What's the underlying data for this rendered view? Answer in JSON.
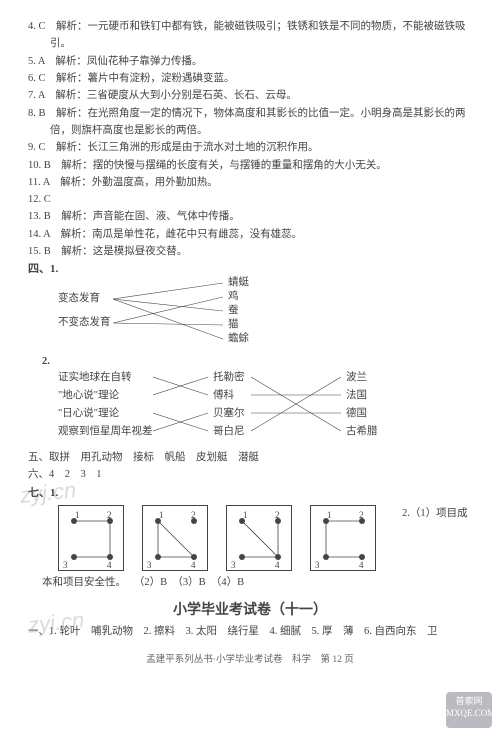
{
  "answers": [
    {
      "text": "4. C　解析：一元硬币和铁钉中都有铁，能被磁铁吸引；铁锈和铁是不同的物质，不能被磁铁吸引。",
      "cls": "indent"
    },
    {
      "text": "5. A　解析：凤仙花种子靠弹力传播。",
      "cls": "indent"
    },
    {
      "text": "6. C　解析：薯片中有淀粉，淀粉遇碘变蓝。",
      "cls": "indent"
    },
    {
      "text": "7. A　解析：三省硬度从大到小分别是石英、长石、云母。",
      "cls": "indent"
    },
    {
      "text": "8. B　解析：在光照角度一定的情况下，物体高度和其影长的比值一定。小明身高是其影长的两倍，则旗杆高度也是影长的两倍。",
      "cls": "indent"
    },
    {
      "text": "9. C　解析：长江三角洲的形成是由于流水对土地的沉积作用。",
      "cls": "indent"
    },
    {
      "text": "10. B　解析：摆的快慢与摆绳的长度有关，与摆锤的重量和摆角的大小无关。",
      "cls": "indent"
    },
    {
      "text": "11. A　解析：外勤温度高，用外勤加热。",
      "cls": "indent"
    },
    {
      "text": "12. C",
      "cls": "indent"
    },
    {
      "text": "13. B　解析：声音能在固、液、气体中传播。",
      "cls": "indent"
    },
    {
      "text": "14. A　解析：南瓜是单性花，雌花中只有雌蕊，没有雄蕊。",
      "cls": "indent"
    },
    {
      "text": "15. B　解析：这是模拟昼夜交替。",
      "cls": "indent"
    }
  ],
  "section4_head": "四、1.",
  "match1": {
    "left": [
      "变态发育",
      "不变态发育"
    ],
    "right": [
      "蜻蜓",
      "鸡",
      "蚕",
      "猫",
      "蟾蜍"
    ],
    "lines": [
      {
        "from": 0,
        "to": 0
      },
      {
        "from": 0,
        "to": 2
      },
      {
        "from": 0,
        "to": 4
      },
      {
        "from": 1,
        "to": 1
      },
      {
        "from": 1,
        "to": 3
      }
    ]
  },
  "match2_head": "2.",
  "match2": {
    "c1": [
      "证实地球在自转",
      "\"地心说\"理论",
      "\"日心说\"理论",
      "观察到恒星周年视差"
    ],
    "c2": [
      "托勒密",
      "傅科",
      "贝塞尔",
      "哥白尼"
    ],
    "c3": [
      "波兰",
      "法国",
      "德国",
      "古希腊"
    ],
    "l12": [
      [
        0,
        1
      ],
      [
        1,
        0
      ],
      [
        2,
        3
      ],
      [
        3,
        2
      ]
    ],
    "l23": [
      [
        0,
        3
      ],
      [
        1,
        1
      ],
      [
        2,
        2
      ],
      [
        3,
        0
      ]
    ]
  },
  "section5": "五、取拼　用孔动物　接标　帆船　皮划艇　潜艇",
  "section6": "六、4　2　3　1",
  "section7_head": "七、1.",
  "dice": [
    {
      "dots": [
        [
          15,
          15
        ],
        [
          51,
          15
        ],
        [
          15,
          51
        ],
        [
          51,
          51
        ]
      ],
      "nums": [
        [
          "1",
          16,
          4
        ],
        [
          "2",
          48,
          4
        ],
        [
          "3",
          4,
          54
        ],
        [
          "4",
          48,
          54
        ]
      ],
      "lines": [
        [
          15,
          15,
          51,
          15
        ],
        [
          51,
          15,
          51,
          51
        ],
        [
          51,
          51,
          15,
          51
        ]
      ]
    },
    {
      "dots": [
        [
          15,
          15
        ],
        [
          51,
          15
        ],
        [
          15,
          51
        ],
        [
          51,
          51
        ]
      ],
      "nums": [
        [
          "1",
          16,
          4
        ],
        [
          "2",
          48,
          4
        ],
        [
          "3",
          4,
          54
        ],
        [
          "4",
          48,
          54
        ]
      ],
      "lines": [
        [
          15,
          15,
          51,
          51
        ],
        [
          15,
          15,
          15,
          51
        ],
        [
          15,
          51,
          51,
          51
        ]
      ]
    },
    {
      "dots": [
        [
          15,
          15
        ],
        [
          51,
          15
        ],
        [
          15,
          51
        ],
        [
          51,
          51
        ]
      ],
      "nums": [
        [
          "1",
          16,
          4
        ],
        [
          "2",
          48,
          4
        ],
        [
          "3",
          4,
          54
        ],
        [
          "4",
          48,
          54
        ]
      ],
      "lines": [
        [
          15,
          15,
          51,
          51
        ],
        [
          51,
          15,
          51,
          51
        ],
        [
          51,
          51,
          15,
          51
        ]
      ]
    },
    {
      "dots": [
        [
          15,
          15
        ],
        [
          51,
          15
        ],
        [
          15,
          51
        ],
        [
          51,
          51
        ]
      ],
      "nums": [
        [
          "1",
          16,
          4
        ],
        [
          "2",
          48,
          4
        ],
        [
          "3",
          4,
          54
        ],
        [
          "4",
          48,
          54
        ]
      ],
      "lines": [
        [
          15,
          15,
          51,
          15
        ],
        [
          15,
          15,
          15,
          51
        ],
        [
          15,
          51,
          51,
          51
        ]
      ]
    }
  ],
  "dice_side": "2.（1）项目成",
  "below_dice": "本和项目安全性。　  （2）B　（3）B　（4）B",
  "title": "小学毕业考试卷（十一）",
  "last_line": "一、1. 轮叶　哺乳动物　2. 擦料　3. 太阳　绕行星　4. 细腻　5. 厚　薄　6. 自西向东　卫",
  "footer": "孟建平系列丛书·小学毕业考试卷　科学　第 12 页",
  "watermark": "zyj.cn",
  "badge": {
    "l1": "普索网",
    "l2": "MXQE.COM"
  }
}
